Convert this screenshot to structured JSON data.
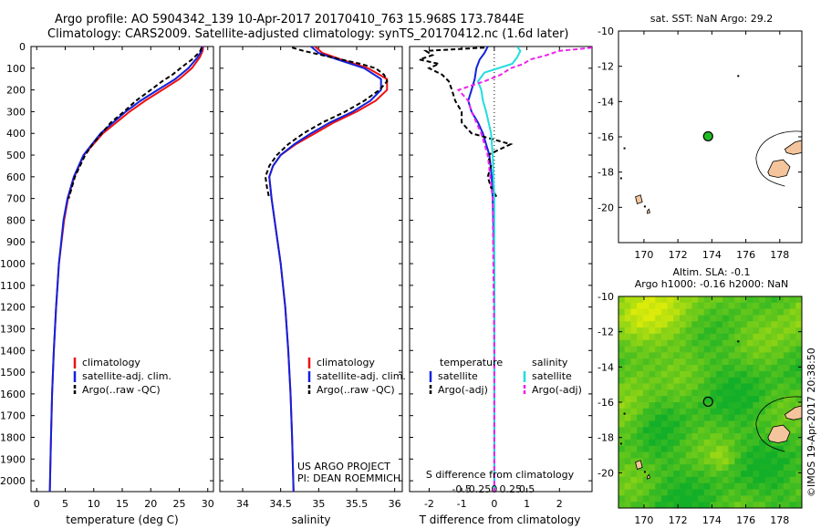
{
  "header": {
    "line1": "Argo profile: AO 5904342_139 10-Apr-2017 20170410_763 15.968S 173.7844E",
    "line2": "Climatology: CARS2009. Satellite-adjusted climatology: synTS_20170412.nc (1.6d later)"
  },
  "credit": "©IMOS 19-Apr-2017 20:38:50",
  "project": {
    "line1": "US ARGO PROJECT",
    "line2": "PI: DEAN ROEMMICH"
  },
  "colors": {
    "climatology": "#ee1111",
    "satellite": "#1122dd",
    "argo": "#000000",
    "sal_satellite": "#22dddd",
    "sal_argo": "#ee22ee",
    "land": "#f4c59c"
  },
  "chart_data": [
    {
      "id": "temperature",
      "type": "line",
      "xlabel": "temperature (deg C)",
      "ylabel": "",
      "xlim": [
        -1,
        31
      ],
      "ylim": [
        2050,
        0
      ],
      "xticks": [
        0,
        5,
        10,
        15,
        20,
        25,
        30
      ],
      "yticks": [
        0,
        100,
        200,
        300,
        400,
        500,
        600,
        700,
        800,
        900,
        1000,
        1100,
        1200,
        1300,
        1400,
        1500,
        1600,
        1700,
        1800,
        1900,
        2000
      ],
      "legend": [
        "climatology",
        "satellite-adj. clim.",
        "Argo(..raw -QC)"
      ],
      "legend_position": "bottom-center",
      "series": [
        {
          "name": "climatology",
          "color": "#ee1111",
          "dash": "",
          "depth": [
            0,
            20,
            50,
            100,
            150,
            200,
            250,
            300,
            400,
            500,
            600,
            700,
            800,
            1000,
            1200,
            1400,
            1600,
            1800,
            2050
          ],
          "values": [
            29.2,
            29.1,
            28.6,
            27.2,
            25.0,
            22.0,
            19.0,
            16.3,
            11.6,
            8.3,
            6.6,
            5.5,
            4.8,
            3.9,
            3.4,
            3.0,
            2.7,
            2.5,
            2.3
          ]
        },
        {
          "name": "satellite-adj. clim.",
          "color": "#1122dd",
          "dash": "",
          "depth": [
            0,
            20,
            50,
            100,
            150,
            200,
            250,
            300,
            400,
            500,
            600,
            700,
            800,
            1000,
            1200,
            1400,
            1600,
            1800,
            2050
          ],
          "values": [
            29.0,
            28.9,
            28.2,
            26.6,
            24.3,
            21.2,
            18.2,
            15.6,
            11.2,
            8.2,
            6.5,
            5.4,
            4.7,
            3.9,
            3.4,
            3.0,
            2.7,
            2.5,
            2.3
          ]
        },
        {
          "name": "Argo(..raw -QC)",
          "color": "#000000",
          "dash": "5,3",
          "depth": [
            5,
            20,
            40,
            60,
            80,
            100,
            130,
            160,
            200,
            250,
            300,
            350,
            400,
            450,
            500,
            600,
            700
          ],
          "values": [
            28.9,
            28.7,
            28.0,
            27.2,
            26.2,
            25.2,
            23.8,
            22.0,
            20.0,
            17.4,
            15.3,
            13.0,
            11.4,
            9.8,
            8.5,
            6.7,
            5.6
          ]
        }
      ]
    },
    {
      "id": "salinity",
      "type": "line",
      "xlabel": "salinity",
      "ylabel": "",
      "xlim": [
        33.7,
        36.1
      ],
      "ylim": [
        2050,
        0
      ],
      "xticks": [
        34,
        34.5,
        35,
        35.5,
        36
      ],
      "legend": [
        "climatology",
        "satellite-adj. clim.",
        "Argo(..raw -QC)"
      ],
      "legend_position": "bottom-center",
      "series": [
        {
          "name": "climatology",
          "color": "#ee1111",
          "dash": "",
          "depth": [
            0,
            30,
            60,
            100,
            150,
            200,
            250,
            300,
            350,
            400,
            450,
            500,
            550,
            600,
            700,
            800,
            1000,
            1200,
            1400,
            1600,
            1800,
            2050
          ],
          "values": [
            34.95,
            35.05,
            35.3,
            35.65,
            35.9,
            35.9,
            35.75,
            35.5,
            35.2,
            34.95,
            34.7,
            34.5,
            34.4,
            34.35,
            34.38,
            34.42,
            34.5,
            34.56,
            34.6,
            34.63,
            34.65,
            34.67
          ]
        },
        {
          "name": "satellite-adj. clim.",
          "color": "#1122dd",
          "dash": "",
          "depth": [
            0,
            30,
            60,
            100,
            150,
            200,
            250,
            300,
            350,
            400,
            450,
            500,
            550,
            600,
            700,
            800,
            1000,
            1200,
            1400,
            1600,
            1800,
            2050
          ],
          "values": [
            34.9,
            35.0,
            35.25,
            35.6,
            35.82,
            35.82,
            35.68,
            35.45,
            35.15,
            34.9,
            34.68,
            34.5,
            34.4,
            34.35,
            34.38,
            34.42,
            34.5,
            34.56,
            34.6,
            34.63,
            34.65,
            34.67
          ]
        },
        {
          "name": "Argo(..raw -QC)",
          "color": "#000000",
          "dash": "5,3",
          "depth": [
            5,
            20,
            40,
            60,
            80,
            100,
            130,
            160,
            200,
            250,
            300,
            350,
            400,
            450,
            500,
            550,
            600,
            650,
            700
          ],
          "values": [
            34.65,
            34.8,
            35.05,
            35.3,
            35.55,
            35.75,
            35.86,
            35.9,
            35.8,
            35.6,
            35.35,
            35.05,
            34.8,
            34.6,
            34.45,
            34.35,
            34.3,
            34.32,
            34.35
          ]
        }
      ]
    },
    {
      "id": "difference",
      "type": "line",
      "xlabel": "T difference from climatology",
      "xlabel_top": "S difference from climatology",
      "xlim": [
        -2.6,
        3.0
      ],
      "ylim": [
        2050,
        0
      ],
      "xticks": [
        -2,
        -1,
        0,
        1,
        2
      ],
      "xticks_s": [
        -0.5,
        -0.25,
        0,
        0.25,
        0.5
      ],
      "xtick_labels_s": [
        "-0.5",
        "-0.25",
        "0",
        "0.25",
        "0.5"
      ],
      "legend_temperature": {
        "title": "temperature",
        "items": [
          "satellite",
          "Argo(-adj)"
        ]
      },
      "legend_salinity": {
        "title": "salinity",
        "items": [
          "satellite",
          "Argo(-adj)"
        ]
      },
      "legend_position": "bottom-center",
      "series": [
        {
          "name": "T satellite",
          "color": "#1122dd",
          "dash": "",
          "depth": [
            0,
            30,
            60,
            100,
            150,
            200,
            250,
            300,
            350,
            400,
            450,
            500,
            600,
            700,
            800,
            1000,
            1400,
            2050
          ],
          "values": [
            -0.2,
            -0.3,
            -0.45,
            -0.55,
            -0.6,
            -0.7,
            -0.8,
            -0.7,
            -0.5,
            -0.35,
            -0.25,
            -0.15,
            -0.08,
            -0.05,
            -0.03,
            0,
            0,
            0
          ]
        },
        {
          "name": "T Argo(-adj)",
          "color": "#000000",
          "dash": "5,3",
          "depth": [
            5,
            20,
            40,
            60,
            80,
            100,
            130,
            160,
            200,
            250,
            300,
            350,
            400,
            450,
            500,
            550,
            600,
            650,
            700
          ],
          "values": [
            -0.3,
            -2.1,
            -1.9,
            -2.3,
            -1.7,
            -2.0,
            -1.6,
            -1.4,
            -1.3,
            -1.2,
            -1.0,
            -1.0,
            -0.7,
            0.5,
            -0.2,
            -0.1,
            -0.2,
            -0.1,
            0.1
          ]
        },
        {
          "name": "S satellite",
          "color": "#22dddd",
          "dash": "",
          "depth": [
            0,
            20,
            50,
            80,
            120,
            160,
            200,
            250,
            300,
            400,
            500,
            700,
            1000,
            1400,
            2050
          ],
          "values": [
            0.7,
            0.8,
            0.7,
            0.55,
            -0.3,
            -0.5,
            -0.4,
            -0.35,
            -0.25,
            -0.1,
            -0.05,
            0,
            0,
            0,
            0
          ]
        },
        {
          "name": "S Argo(-adj)",
          "color": "#ee22ee",
          "dash": "5,3",
          "depth": [
            5,
            10,
            20,
            40,
            60,
            80,
            100,
            130,
            160,
            200,
            250,
            300,
            400,
            500,
            700,
            1000,
            1400,
            2050
          ],
          "values": [
            3.0,
            2.7,
            2.0,
            1.6,
            1.1,
            0.9,
            0.5,
            0.2,
            -0.3,
            -1.1,
            -0.8,
            -0.7,
            -0.4,
            -0.2,
            -0.05,
            -0.03,
            0,
            0
          ]
        }
      ]
    },
    {
      "id": "sst-map",
      "type": "scatter",
      "title": "sat. SST: NaN  Argo: 29.2",
      "xlim": [
        168.5,
        179.3
      ],
      "ylim": [
        -22,
        -10
      ],
      "xticks": [
        170,
        172,
        174,
        176,
        178
      ],
      "yticks": [
        -10,
        -12,
        -14,
        -16,
        -18,
        -20
      ],
      "point": {
        "lon": 173.78,
        "lat": -15.97,
        "color": "#22bb22"
      }
    },
    {
      "id": "sla-map",
      "type": "heatmap",
      "title": "Altim. SLA: -0.1",
      "subtitle": "Argo h1000: -0.16 h2000: NaN",
      "xlim": [
        168.5,
        179.3
      ],
      "ylim": [
        -22,
        -10
      ],
      "xticks": [
        170,
        172,
        174,
        176,
        178
      ],
      "yticks": [
        -10,
        -12,
        -14,
        -16,
        -18,
        -20
      ],
      "point": {
        "lon": 173.78,
        "lat": -15.97
      }
    }
  ]
}
